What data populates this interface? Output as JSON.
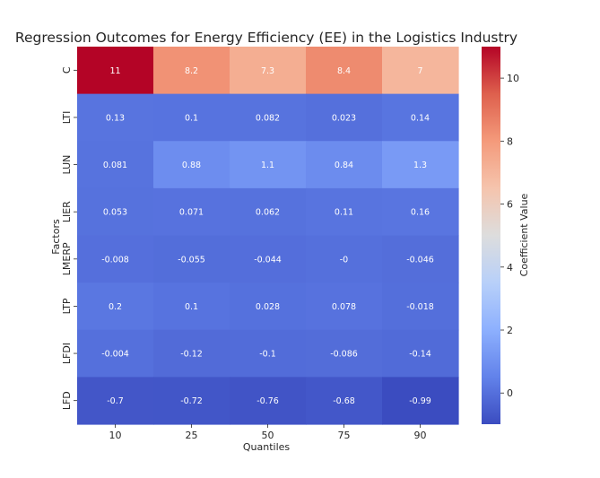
{
  "chart_data": {
    "type": "heatmap",
    "title": "Regression Outcomes for Energy Efficiency (EE) in the Logistics Industry",
    "xlabel": "Quantiles",
    "ylabel": "Factors",
    "colorbar_label": "Coefficient Value",
    "colormap": "coolwarm",
    "x": [
      "10",
      "25",
      "50",
      "75",
      "90"
    ],
    "y": [
      "C",
      "LTI",
      "LUN",
      "LIER",
      "LMERP",
      "LTP",
      "LFDI",
      "LFD"
    ],
    "values": [
      [
        11,
        8.2,
        7.3,
        8.4,
        7
      ],
      [
        0.13,
        0.1,
        0.082,
        0.023,
        0.14
      ],
      [
        0.081,
        0.88,
        1.1,
        0.84,
        1.3
      ],
      [
        0.053,
        0.071,
        0.062,
        0.11,
        0.16
      ],
      [
        -0.008,
        -0.055,
        -0.044,
        0,
        -0.046
      ],
      [
        0.2,
        0.1,
        0.028,
        0.078,
        -0.018
      ],
      [
        -0.004,
        -0.12,
        -0.1,
        -0.086,
        -0.14
      ],
      [
        -0.7,
        -0.72,
        -0.76,
        -0.68,
        -0.99
      ]
    ],
    "labels": [
      [
        "11",
        "8.2",
        "7.3",
        "8.4",
        "7"
      ],
      [
        "0.13",
        "0.1",
        "0.082",
        "0.023",
        "0.14"
      ],
      [
        "0.081",
        "0.88",
        "1.1",
        "0.84",
        "1.3"
      ],
      [
        "0.053",
        "0.071",
        "0.062",
        "0.11",
        "0.16"
      ],
      [
        "-0.008",
        "-0.055",
        "-0.044",
        "-0",
        "-0.046"
      ],
      [
        "0.2",
        "0.1",
        "0.028",
        "0.078",
        "-0.018"
      ],
      [
        "-0.004",
        "-0.12",
        "-0.1",
        "-0.086",
        "-0.14"
      ],
      [
        "-0.7",
        "-0.72",
        "-0.76",
        "-0.68",
        "-0.99"
      ]
    ],
    "vmin": -0.99,
    "vmax": 11,
    "colorbar_ticks": [
      0,
      2,
      4,
      6,
      8,
      10
    ]
  }
}
